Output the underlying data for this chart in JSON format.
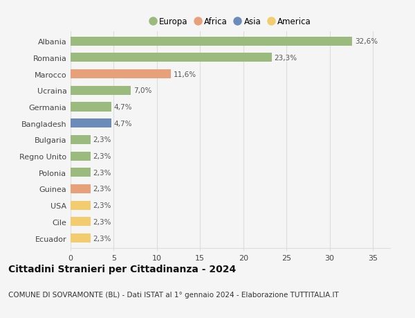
{
  "categories": [
    "Ecuador",
    "Cile",
    "USA",
    "Guinea",
    "Polonia",
    "Regno Unito",
    "Bulgaria",
    "Bangladesh",
    "Germania",
    "Ucraina",
    "Marocco",
    "Romania",
    "Albania"
  ],
  "values": [
    2.3,
    2.3,
    2.3,
    2.3,
    2.3,
    2.3,
    2.3,
    4.7,
    4.7,
    7.0,
    11.6,
    23.3,
    32.6
  ],
  "bar_colors": [
    "#f2cc6e",
    "#f2cc6e",
    "#f2cc6e",
    "#e8a07a",
    "#9aba7e",
    "#9aba7e",
    "#9aba7e",
    "#6b8cba",
    "#9aba7e",
    "#9aba7e",
    "#e8a07a",
    "#9aba7e",
    "#9aba7e"
  ],
  "labels": [
    "2,3%",
    "2,3%",
    "2,3%",
    "2,3%",
    "2,3%",
    "2,3%",
    "2,3%",
    "4,7%",
    "4,7%",
    "7,0%",
    "11,6%",
    "23,3%",
    "32,6%"
  ],
  "legend": [
    {
      "label": "Europa",
      "color": "#9aba7e"
    },
    {
      "label": "Africa",
      "color": "#e8a07a"
    },
    {
      "label": "Asia",
      "color": "#6b8cba"
    },
    {
      "label": "America",
      "color": "#f2cc6e"
    }
  ],
  "title": "Cittadini Stranieri per Cittadinanza - 2024",
  "subtitle": "COMUNE DI SOVRAMONTE (BL) - Dati ISTAT al 1° gennaio 2024 - Elaborazione TUTTITALIA.IT",
  "xlim": [
    0,
    37
  ],
  "xticks": [
    0,
    5,
    10,
    15,
    20,
    25,
    30,
    35
  ],
  "background_color": "#f5f5f5",
  "grid_color": "#dddddd",
  "bar_height": 0.55,
  "title_fontsize": 10,
  "subtitle_fontsize": 7.5,
  "label_fontsize": 7.5,
  "ytick_fontsize": 8,
  "xtick_fontsize": 8,
  "legend_fontsize": 8.5
}
